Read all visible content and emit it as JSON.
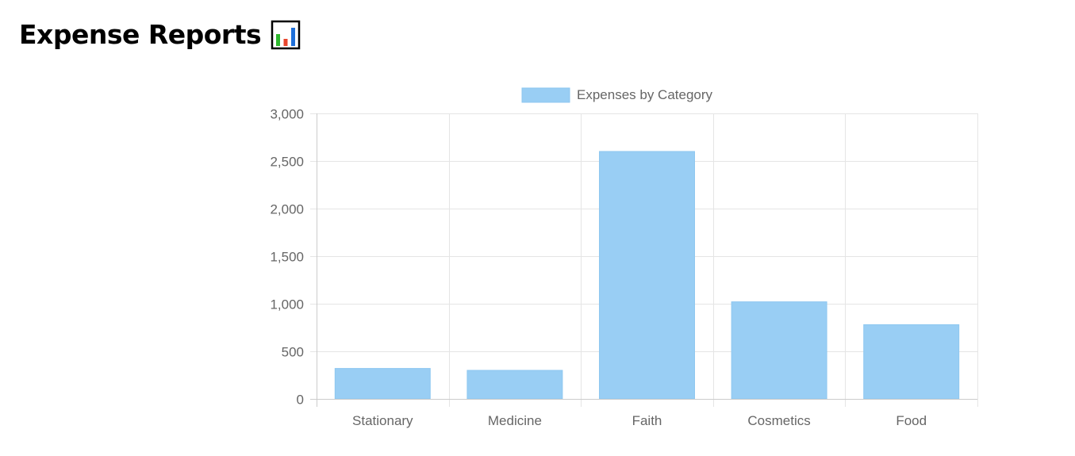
{
  "header": {
    "title": "Expense Reports",
    "emoji": "bar-chart-emoji"
  },
  "colors": {
    "bar_fill": "#99CEF4",
    "bar_border": "#8ec7f0",
    "grid": "#e5e5e5",
    "axis": "#cccccc",
    "text": "#666666"
  },
  "chart_data": {
    "type": "bar",
    "legend": "Expenses by Category",
    "legend_position": "top-center",
    "categories": [
      "Stationary",
      "Medicine",
      "Faith",
      "Cosmetics",
      "Food"
    ],
    "series": [
      {
        "name": "Expenses by Category",
        "values": [
          320,
          300,
          2600,
          1020,
          780
        ]
      }
    ],
    "ylim": [
      0,
      3000
    ],
    "yticks": [
      0,
      500,
      1000,
      1500,
      2000,
      2500,
      3000
    ],
    "ytick_labels": [
      "0",
      "500",
      "1,000",
      "1,500",
      "2,000",
      "2,500",
      "3,000"
    ],
    "grid": true
  }
}
